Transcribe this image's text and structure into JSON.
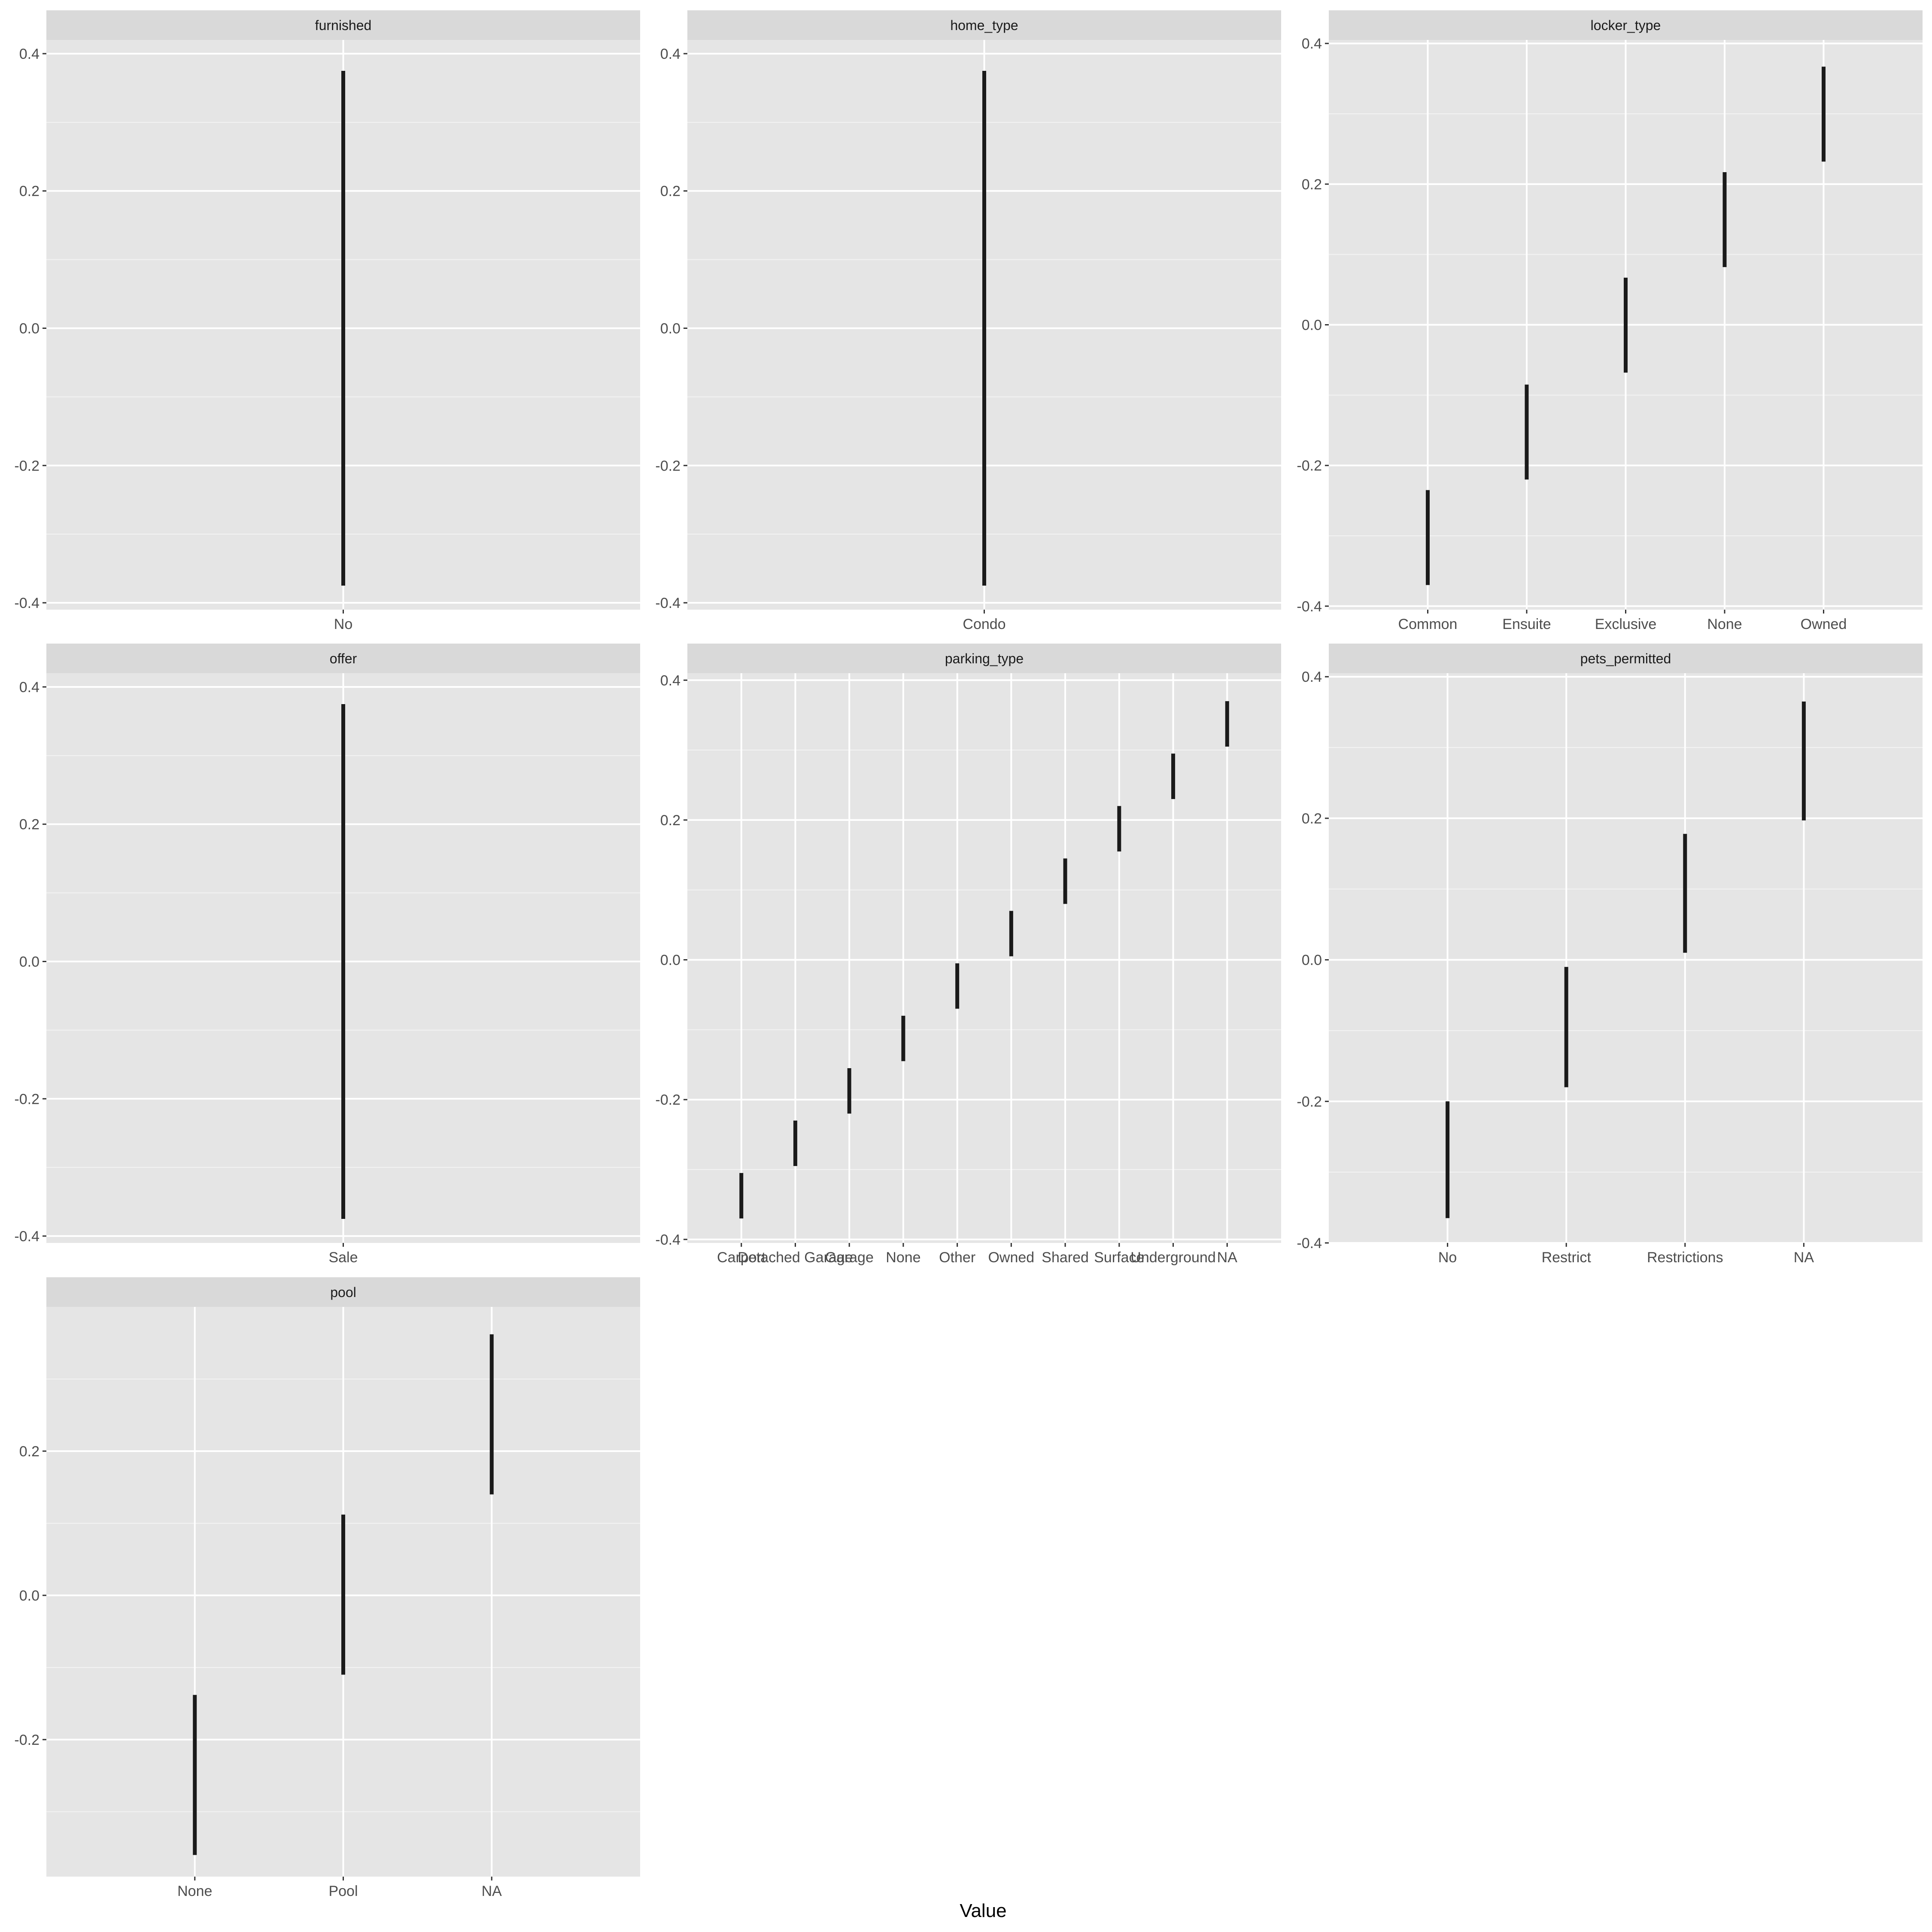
{
  "figure": {
    "xlabel": "Value",
    "colors": {
      "panel_bg": "#E5E5E5",
      "strip_bg": "#D9D9D9",
      "grid": "#FFFFFF",
      "bar": "#1A1A1A",
      "tick_text": "#4D4D4D"
    }
  },
  "chart_data": [
    {
      "type": "range",
      "title": "furnished",
      "categories": [
        "No"
      ],
      "ranges": [
        [
          -0.375,
          0.375
        ]
      ],
      "ylim": [
        -0.41,
        0.42
      ],
      "yticks": [
        "0.4",
        "0.2",
        "0.0",
        "-0.2",
        "-0.4"
      ],
      "grid": true
    },
    {
      "type": "range",
      "title": "home_type",
      "categories": [
        "Condo"
      ],
      "ranges": [
        [
          -0.375,
          0.375
        ]
      ],
      "ylim": [
        -0.41,
        0.42
      ],
      "yticks": [
        "0.4",
        "0.2",
        "0.0",
        "-0.2",
        "-0.4"
      ],
      "grid": true
    },
    {
      "type": "range",
      "title": "locker_type",
      "categories": [
        "Common",
        "Ensuite",
        "Exclusive",
        "None",
        "Owned"
      ],
      "ranges": [
        [
          -0.37,
          -0.235
        ],
        [
          -0.22,
          -0.085
        ],
        [
          -0.068,
          0.067
        ],
        [
          0.082,
          0.217
        ],
        [
          0.232,
          0.367
        ]
      ],
      "ylim": [
        -0.405,
        0.405
      ],
      "yticks": [
        "0.4",
        "0.2",
        "0.0",
        "-0.2",
        "-0.4"
      ],
      "grid": true
    },
    {
      "type": "range",
      "title": "offer",
      "categories": [
        "Sale"
      ],
      "ranges": [
        [
          -0.375,
          0.375
        ]
      ],
      "ylim": [
        -0.41,
        0.42
      ],
      "yticks": [
        "0.4",
        "0.2",
        "0.0",
        "-0.2",
        "-0.4"
      ],
      "grid": true
    },
    {
      "type": "range",
      "title": "parking_type",
      "categories": [
        "Carport",
        "Detached Garage",
        "Garage",
        "None",
        "Other",
        "Owned",
        "Shared",
        "Surface",
        "Underground",
        "NA"
      ],
      "ranges": [
        [
          -0.37,
          -0.305
        ],
        [
          -0.295,
          -0.23
        ],
        [
          -0.22,
          -0.155
        ],
        [
          -0.145,
          -0.08
        ],
        [
          -0.07,
          -0.005
        ],
        [
          0.005,
          0.07
        ],
        [
          0.08,
          0.145
        ],
        [
          0.155,
          0.22
        ],
        [
          0.23,
          0.295
        ],
        [
          0.305,
          0.37
        ]
      ],
      "ylim": [
        -0.405,
        0.41
      ],
      "yticks": [
        "0.4",
        "0.2",
        "0.0",
        "-0.2",
        "-0.4"
      ],
      "grid": true
    },
    {
      "type": "range",
      "title": "pets_permitted",
      "categories": [
        "No",
        "Restrict",
        "Restrictions",
        "NA"
      ],
      "ranges": [
        [
          -0.365,
          -0.2
        ],
        [
          -0.18,
          -0.01
        ],
        [
          0.01,
          0.178
        ],
        [
          0.197,
          0.365
        ]
      ],
      "ylim": [
        -0.4,
        0.405
      ],
      "yticks": [
        "0.4",
        "0.2",
        "0.0",
        "-0.2",
        "-0.4"
      ],
      "grid": true
    },
    {
      "type": "range",
      "title": "pool",
      "categories": [
        "None",
        "Pool",
        "NA"
      ],
      "ranges": [
        [
          -0.36,
          -0.138
        ],
        [
          -0.11,
          0.112
        ],
        [
          0.14,
          0.362
        ]
      ],
      "ylim": [
        -0.39,
        0.4
      ],
      "yticks": [
        "0.2",
        "0.0",
        "-0.2"
      ],
      "grid": true
    }
  ]
}
